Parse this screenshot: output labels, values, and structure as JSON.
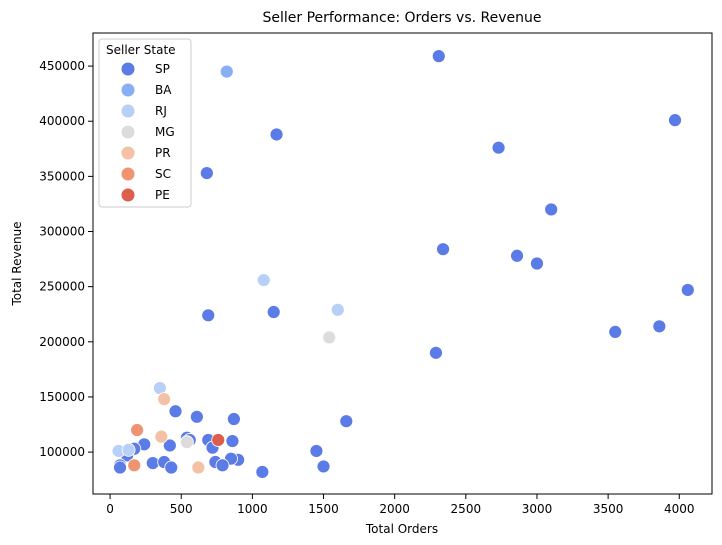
{
  "chart_data": {
    "type": "scatter",
    "title": "Seller Performance: Orders vs. Revenue",
    "xlabel": "Total Orders",
    "ylabel": "Total Revenue",
    "xlim": [
      -120,
      4230
    ],
    "ylim": [
      62000,
      480000
    ],
    "xticks": [
      0,
      500,
      1000,
      1500,
      2000,
      2500,
      3000,
      3500,
      4000
    ],
    "yticks": [
      100000,
      150000,
      200000,
      250000,
      300000,
      350000,
      400000,
      450000
    ],
    "grid": false,
    "legend": {
      "title": "Seller State",
      "placement": "top-left",
      "entries": [
        {
          "label": "SP",
          "color": "#5b7be6"
        },
        {
          "label": "BA",
          "color": "#89aef5"
        },
        {
          "label": "RJ",
          "color": "#b8cff7"
        },
        {
          "label": "MG",
          "color": "#dcdcdc"
        },
        {
          "label": "PR",
          "color": "#f4c0a6"
        },
        {
          "label": "SC",
          "color": "#ef9470"
        },
        {
          "label": "PE",
          "color": "#dd5e4c"
        }
      ]
    },
    "series": [
      {
        "name": "SP",
        "color": "#5b7be6",
        "points": [
          [
            2310,
            459000
          ],
          [
            1170,
            388000
          ],
          [
            3970,
            401000
          ],
          [
            2730,
            376000
          ],
          [
            680,
            353000
          ],
          [
            3100,
            320000
          ],
          [
            2340,
            284000
          ],
          [
            2860,
            278000
          ],
          [
            3000,
            271000
          ],
          [
            4060,
            247000
          ],
          [
            690,
            224000
          ],
          [
            1150,
            227000
          ],
          [
            3550,
            209000
          ],
          [
            3860,
            214000
          ],
          [
            2290,
            190000
          ],
          [
            1660,
            128000
          ],
          [
            1450,
            101000
          ],
          [
            1500,
            87000
          ],
          [
            1070,
            82000
          ],
          [
            460,
            137000
          ],
          [
            610,
            132000
          ],
          [
            870,
            130000
          ],
          [
            540,
            113000
          ],
          [
            560,
            111000
          ],
          [
            690,
            111000
          ],
          [
            860,
            110000
          ],
          [
            720,
            104000
          ],
          [
            240,
            107000
          ],
          [
            420,
            106000
          ],
          [
            170,
            103000
          ],
          [
            120,
            97000
          ],
          [
            900,
            93000
          ],
          [
            850,
            94000
          ],
          [
            740,
            91000
          ],
          [
            790,
            88000
          ],
          [
            300,
            90000
          ],
          [
            380,
            91000
          ],
          [
            430,
            86000
          ],
          [
            70,
            88000
          ],
          [
            70,
            86000
          ]
        ]
      },
      {
        "name": "BA",
        "color": "#89aef5",
        "points": [
          [
            820,
            445000
          ]
        ]
      },
      {
        "name": "RJ",
        "color": "#b8cff7",
        "points": [
          [
            1080,
            256000
          ],
          [
            1600,
            229000
          ],
          [
            350,
            158000
          ],
          [
            60,
            101000
          ],
          [
            130,
            102000
          ]
        ]
      },
      {
        "name": "MG",
        "color": "#dcdcdc",
        "points": [
          [
            1540,
            204000
          ],
          [
            540,
            109000
          ]
        ]
      },
      {
        "name": "PR",
        "color": "#f4c0a6",
        "points": [
          [
            380,
            148000
          ],
          [
            360,
            114000
          ],
          [
            620,
            86000
          ]
        ]
      },
      {
        "name": "SC",
        "color": "#ef9470",
        "points": [
          [
            190,
            120000
          ],
          [
            170,
            88000
          ]
        ]
      },
      {
        "name": "PE",
        "color": "#dd5e4c",
        "points": [
          [
            760,
            111000
          ]
        ]
      }
    ]
  }
}
